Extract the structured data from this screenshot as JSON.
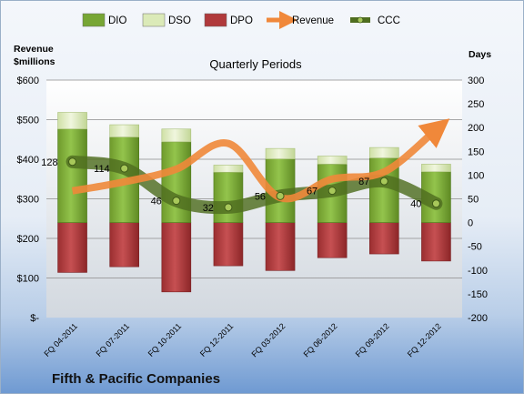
{
  "chart_data": {
    "type": "bar",
    "title": "Quarterly Periods",
    "company": "Fifth & Pacific Companies",
    "y_left_label": [
      "Revenue",
      "$millions"
    ],
    "y_right_label": "Days",
    "y_left_ticks": [
      "$-",
      "$100",
      "$200",
      "$300",
      "$400",
      "$500",
      "$600"
    ],
    "ylim_left": [
      0,
      600
    ],
    "ylim_right": [
      -200,
      300
    ],
    "y_right_ticks": [
      "-200",
      "-150",
      "-100",
      "-50",
      "0",
      "50",
      "100",
      "150",
      "200",
      "250",
      "300"
    ],
    "categories": [
      "FQ 04-2011",
      "FQ 07-2011",
      "FQ 10-2011",
      "FQ 12-2011",
      "FQ 03-2012",
      "FQ 06-2012",
      "FQ 09-2012",
      "FQ 12-2012"
    ],
    "legend": [
      "DIO",
      "DSO",
      "DPO",
      "Revenue",
      "CCC"
    ],
    "legend_position": "top",
    "colors": {
      "DIO": "#77a634",
      "DSO": "#dbeab8",
      "DPO": "#b0393b",
      "Revenue": "#f0883a",
      "CCC": "#4f6e20"
    },
    "series": [
      {
        "name": "DIO",
        "axis": "right",
        "values": [
          197,
          180,
          170,
          106,
          134,
          123,
          136,
          107
        ]
      },
      {
        "name": "DSO",
        "axis": "right",
        "values": [
          35,
          26,
          27,
          15,
          22,
          17,
          22,
          16
        ]
      },
      {
        "name": "DPO",
        "axis": "right",
        "values": [
          -105,
          -93,
          -146,
          -91,
          -101,
          -74,
          -66,
          -81
        ]
      },
      {
        "name": "Revenue",
        "axis": "left",
        "values": [
          320,
          343,
          375,
          440,
          303,
          350,
          368,
          475
        ]
      },
      {
        "name": "CCC",
        "axis": "right",
        "values": [
          128,
          114,
          46,
          32,
          56,
          67,
          87,
          40
        ]
      }
    ],
    "ccc_labels": [
      "128",
      "114",
      "46",
      "32",
      "56",
      "67",
      "87",
      "40"
    ],
    "grid": true
  }
}
